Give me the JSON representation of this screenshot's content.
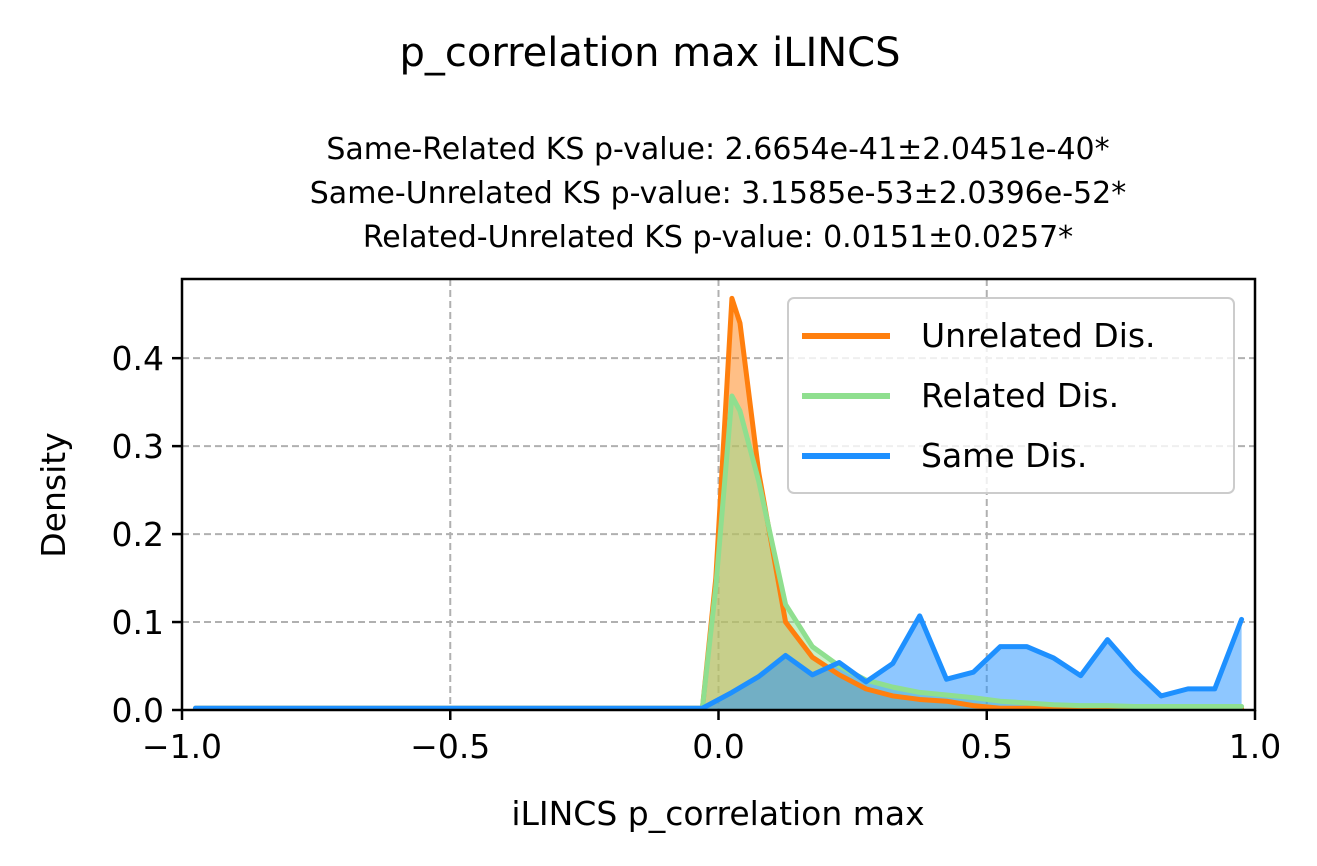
{
  "figure": {
    "suptitle": "p_correlation max iLINCS",
    "subtitle_lines": [
      "Same-Related KS p-value: 2.6654e-41±2.0451e-40*",
      "Same-Unrelated KS p-value: 3.1585e-53±2.0396e-52*",
      "Related-Unrelated KS p-value: 0.0151±0.0257*"
    ]
  },
  "chart_data": {
    "type": "line",
    "xlabel": "iLINCS p_correlation max",
    "ylabel": "Density",
    "xlim": [
      -1.0,
      1.0
    ],
    "ylim": [
      0.0,
      0.49
    ],
    "xticks": [
      -1.0,
      -0.5,
      0.0,
      0.5,
      1.0
    ],
    "xtick_labels": [
      "−1.0",
      "−0.5",
      "0.0",
      "0.5",
      "1.0"
    ],
    "yticks": [
      0.0,
      0.1,
      0.2,
      0.3,
      0.4
    ],
    "ytick_labels": [
      "0.0",
      "0.1",
      "0.2",
      "0.3",
      "0.4"
    ],
    "grid": true,
    "legend_position": "top-right",
    "filled": true,
    "series": [
      {
        "name": "Unrelated Dis.",
        "color": "#ff7f0e",
        "points": [
          [
            -0.975,
            0.002
          ],
          [
            -0.5,
            0.002
          ],
          [
            -0.03,
            0.002
          ],
          [
            -0.005,
            0.15
          ],
          [
            0.025,
            0.468
          ],
          [
            0.04,
            0.44
          ],
          [
            0.075,
            0.27
          ],
          [
            0.125,
            0.1
          ],
          [
            0.175,
            0.06
          ],
          [
            0.225,
            0.04
          ],
          [
            0.275,
            0.024
          ],
          [
            0.325,
            0.016
          ],
          [
            0.375,
            0.012
          ],
          [
            0.425,
            0.01
          ],
          [
            0.475,
            0.005
          ],
          [
            0.525,
            0.002
          ],
          [
            0.975,
            0.002
          ]
        ]
      },
      {
        "name": "Related Dis.",
        "color": "#8fdf8f",
        "points": [
          [
            -0.975,
            0.002
          ],
          [
            -0.5,
            0.002
          ],
          [
            -0.03,
            0.002
          ],
          [
            -0.005,
            0.14
          ],
          [
            0.025,
            0.357
          ],
          [
            0.04,
            0.34
          ],
          [
            0.075,
            0.26
          ],
          [
            0.125,
            0.12
          ],
          [
            0.175,
            0.072
          ],
          [
            0.225,
            0.05
          ],
          [
            0.275,
            0.034
          ],
          [
            0.325,
            0.026
          ],
          [
            0.375,
            0.02
          ],
          [
            0.425,
            0.017
          ],
          [
            0.475,
            0.014
          ],
          [
            0.525,
            0.01
          ],
          [
            0.575,
            0.008
          ],
          [
            0.625,
            0.006
          ],
          [
            0.675,
            0.005
          ],
          [
            0.725,
            0.005
          ],
          [
            0.775,
            0.004
          ],
          [
            0.825,
            0.004
          ],
          [
            0.875,
            0.004
          ],
          [
            0.925,
            0.004
          ],
          [
            0.975,
            0.004
          ]
        ]
      },
      {
        "name": "Same Dis.",
        "color": "#1e90ff",
        "points": [
          [
            -0.975,
            0.002
          ],
          [
            -0.5,
            0.002
          ],
          [
            -0.03,
            0.002
          ],
          [
            0.025,
            0.02
          ],
          [
            0.075,
            0.038
          ],
          [
            0.125,
            0.062
          ],
          [
            0.175,
            0.04
          ],
          [
            0.225,
            0.054
          ],
          [
            0.275,
            0.032
          ],
          [
            0.325,
            0.053
          ],
          [
            0.375,
            0.107
          ],
          [
            0.425,
            0.035
          ],
          [
            0.475,
            0.043
          ],
          [
            0.525,
            0.072
          ],
          [
            0.575,
            0.072
          ],
          [
            0.625,
            0.059
          ],
          [
            0.675,
            0.039
          ],
          [
            0.725,
            0.08
          ],
          [
            0.775,
            0.045
          ],
          [
            0.825,
            0.016
          ],
          [
            0.875,
            0.024
          ],
          [
            0.925,
            0.024
          ],
          [
            0.975,
            0.103
          ]
        ]
      }
    ]
  }
}
